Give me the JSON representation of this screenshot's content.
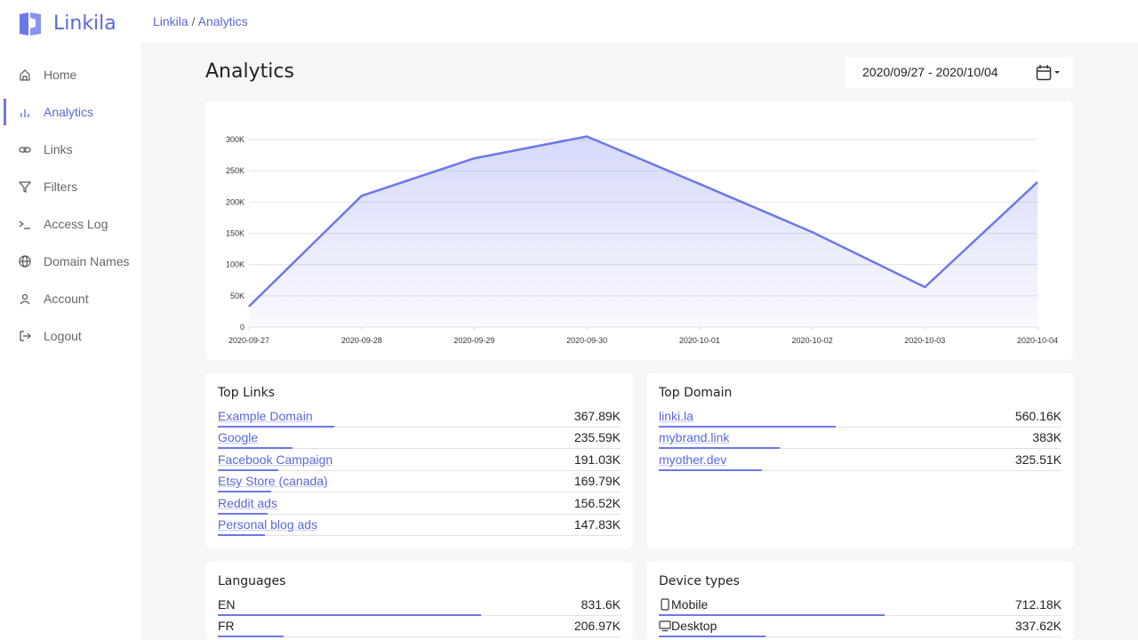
{
  "sidebar": {
    "brand": "Linkila",
    "nav": [
      "Home",
      "Analytics",
      "Links",
      "Filters",
      "Access Log",
      "Domain Names",
      "Account",
      "Logout"
    ]
  },
  "breadcrumb": {
    "items": [
      "Linkila",
      "Analytics"
    ],
    "separator": "/"
  },
  "page": {
    "title": "Analytics",
    "date_range": "2020/09/27 - 2020/10/04"
  },
  "chart_data": {
    "type": "area",
    "categories": [
      "2020-09-27",
      "2020-09-28",
      "2020-09-29",
      "2020-09-30",
      "2020-10-01",
      "2020-10-02",
      "2020-10-03",
      "2020-10-04"
    ],
    "values": [
      33000,
      210000,
      270000,
      305000,
      229000,
      152000,
      64000,
      232000
    ],
    "color": "#6b78ea",
    "ylim": [
      0,
      306000
    ],
    "yticks": [
      0,
      {
        "value": 50000,
        "label": "50K"
      },
      {
        "value": 100000,
        "label": "100K"
      },
      {
        "value": 150000,
        "label": "150K"
      },
      {
        "value": 200000,
        "label": "200K"
      },
      {
        "value": 250000,
        "label": "250K"
      },
      {
        "value": 300000,
        "label": "300K"
      }
    ],
    "grid": true
  },
  "cards": [
    {
      "title": "Top Links",
      "rows": [
        {
          "label": "Example Domain",
          "value": "367.89K"
        },
        {
          "label": "Google",
          "value": "235.59K"
        },
        {
          "label": "Facebook Campaign",
          "value": "191.03K"
        },
        {
          "label": "Etsy Store (canada)",
          "value": "169.79K"
        },
        {
          "label": "Reddit ads",
          "value": "156.52K"
        },
        {
          "label": "Personal blog ads",
          "value": "147.83K"
        }
      ]
    },
    {
      "title": "Top Domain",
      "rows": [
        {
          "label": "linki.la",
          "value": "560.16K"
        },
        {
          "label": "mybrand.link",
          "value": "383K"
        },
        {
          "label": "myother.dev",
          "value": "325.51K"
        }
      ]
    },
    {
      "title": "Languages",
      "rows": [
        {
          "label": "EN",
          "value": "831.6K"
        },
        {
          "label": "FR",
          "value": "206.97K"
        }
      ]
    },
    {
      "title": "Device types",
      "rows": [
        {
          "label": "Mobile",
          "value": "712.18K"
        },
        {
          "label": "Desktop",
          "value": "337.62K"
        }
      ]
    }
  ]
}
